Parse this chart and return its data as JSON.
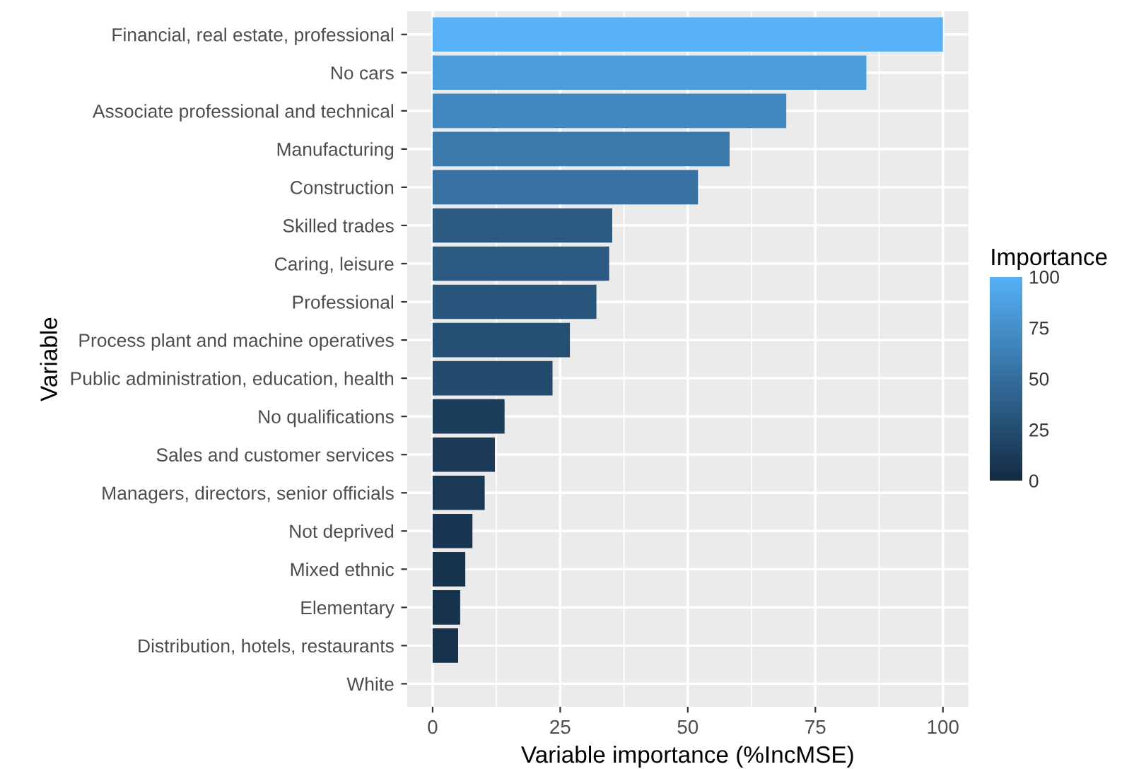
{
  "chart_data": {
    "type": "bar",
    "orientation": "horizontal",
    "xlabel": "Variable importance (%IncMSE)",
    "ylabel": "Variable",
    "clabel": "Importance",
    "categories": [
      "Financial, real estate, professional",
      "No cars",
      "Associate professional and technical",
      "Manufacturing",
      "Construction",
      "Skilled trades",
      "Caring, leisure",
      "Professional",
      "Process plant and machine operatives",
      "Public administration, education, health",
      "No qualifications",
      "Sales and customer services",
      "Managers, directors, senior officials",
      "Not deprived",
      "Mixed ethnic",
      "Elementary",
      "Distribution, hotels, restaurants",
      "White"
    ],
    "values": [
      100,
      85,
      69.3,
      58.2,
      52,
      35.2,
      34.6,
      32.1,
      26.9,
      23.5,
      14.1,
      12.2,
      10.2,
      7.8,
      6.4,
      5.4,
      5.0,
      0
    ],
    "colors": [
      "#56B1F7",
      "#4C9DDC",
      "#4188C0",
      "#3A79AC",
      "#3671A1",
      "#2B5A82",
      "#2A5981",
      "#29567D",
      "#254F73",
      "#234B6D",
      "#1C3E5C",
      "#1B3B59",
      "#1A3955",
      "#183551",
      "#17344F",
      "#17324D",
      "#16324C",
      "#132B43"
    ],
    "xlim": [
      -5,
      105
    ],
    "xticks": [
      0,
      25,
      50,
      75,
      100
    ],
    "clim": [
      0,
      100
    ],
    "cticks": [
      0,
      25,
      50,
      75,
      100
    ],
    "grid": true
  }
}
